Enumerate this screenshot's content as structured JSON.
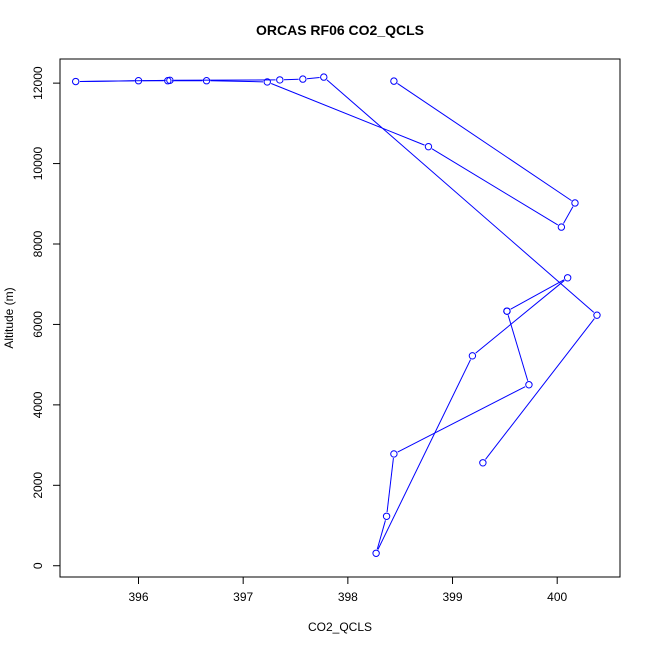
{
  "chart_data": {
    "type": "line",
    "title": "ORCAS RF06 CO2_QCLS",
    "xlabel": "CO2_QCLS",
    "ylabel": "Altitude (m)",
    "xlim": [
      395.25,
      400.6
    ],
    "ylim": [
      -280,
      12600
    ],
    "xticks": [
      396,
      397,
      398,
      399,
      400
    ],
    "yticks": [
      0,
      2000,
      4000,
      6000,
      8000,
      10000,
      12000
    ],
    "markers": "open-circle",
    "line_color": "#0000ff",
    "grid": false,
    "legend": "none",
    "series": [
      {
        "x": [
          398.44,
          400.17,
          400.04,
          398.77,
          397.23,
          396.65,
          396.28,
          396.0,
          395.4,
          396.3,
          397.35,
          397.57,
          397.77,
          400.38,
          399.29
        ],
        "y": [
          12050,
          9020,
          8420,
          10420,
          12030,
          12060,
          12060,
          12060,
          12040,
          12070,
          12080,
          12100,
          12150,
          6230,
          2560
        ]
      },
      {
        "x": [
          399.52,
          399.73,
          398.44,
          398.37,
          398.27,
          399.19,
          400.1,
          399.52
        ],
        "y": [
          6330,
          4500,
          2780,
          1230,
          310,
          5220,
          7160,
          6330
        ]
      }
    ]
  }
}
